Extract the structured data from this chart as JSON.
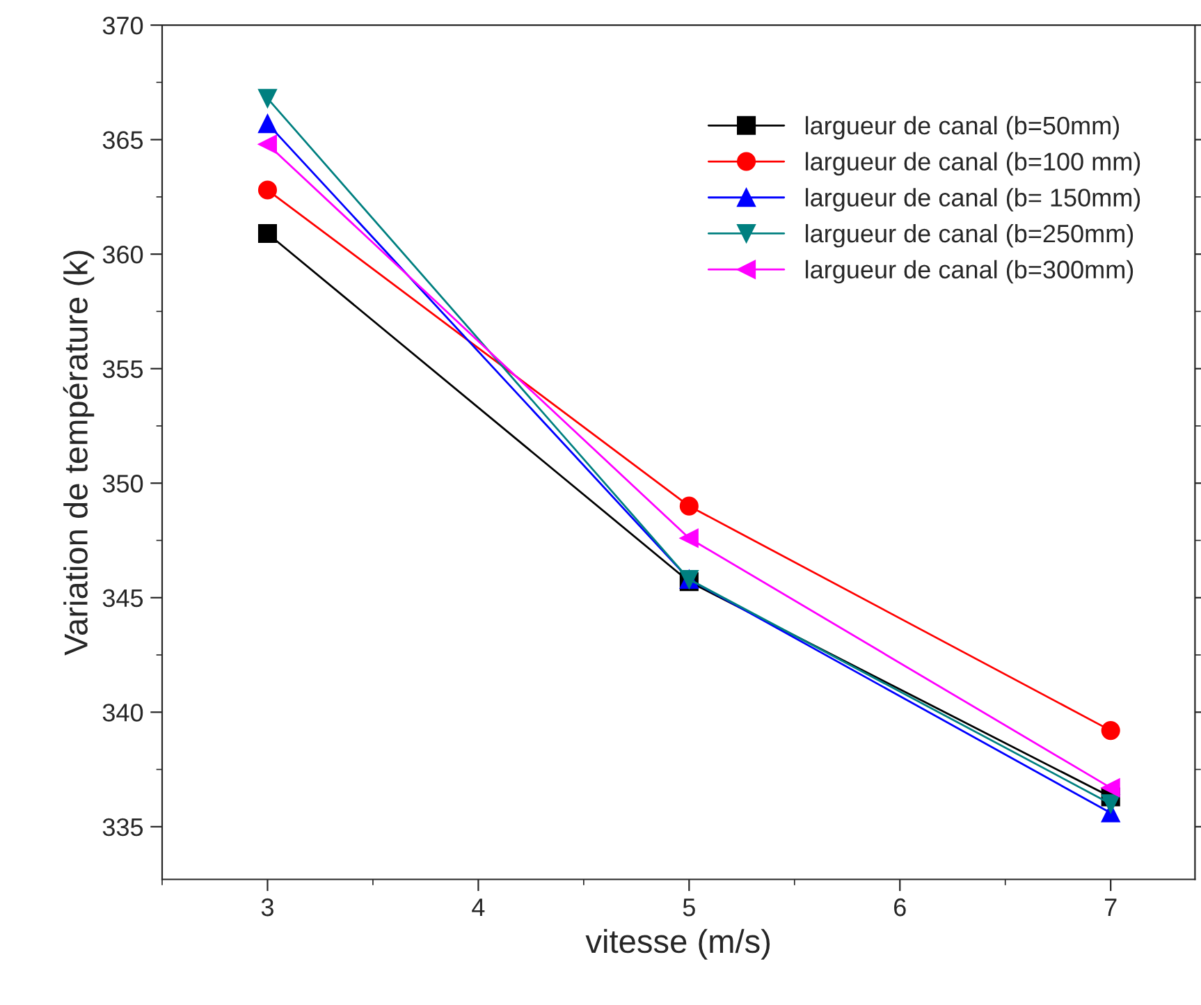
{
  "chart_data": {
    "type": "line",
    "xlabel": "vitesse (m/s)",
    "ylabel": "Variation de température (k)",
    "x": [
      3,
      5,
      7
    ],
    "series": [
      {
        "name": "largueur de canal (b=50mm)",
        "color": "#000000",
        "marker": "square",
        "values": [
          360.9,
          345.7,
          336.3
        ]
      },
      {
        "name": "largueur de canal (b=100 mm)",
        "color": "#ff0000",
        "marker": "circle",
        "values": [
          362.8,
          349.0,
          339.2
        ]
      },
      {
        "name": "largueur de canal (b= 150mm)",
        "color": "#0000ff",
        "marker": "triangle",
        "values": [
          365.7,
          345.8,
          335.6
        ]
      },
      {
        "name": "largueur de canal (b=250mm)",
        "color": "#008080",
        "marker": "triangle_down",
        "values": [
          366.8,
          345.8,
          336.0
        ]
      },
      {
        "name": "largueur de canal (b=300mm)",
        "color": "#ff00ff",
        "marker": "triangle_left",
        "values": [
          364.8,
          347.6,
          336.7
        ]
      }
    ],
    "xlim": [
      2.5,
      7.4
    ],
    "xticks": [
      3,
      4,
      5,
      6,
      7
    ],
    "ylim": [
      332.7,
      370
    ],
    "yticks": [
      335,
      340,
      345,
      350,
      355,
      360,
      365,
      370
    ],
    "grid": false,
    "legend": "top right",
    "line_style": "solid"
  }
}
